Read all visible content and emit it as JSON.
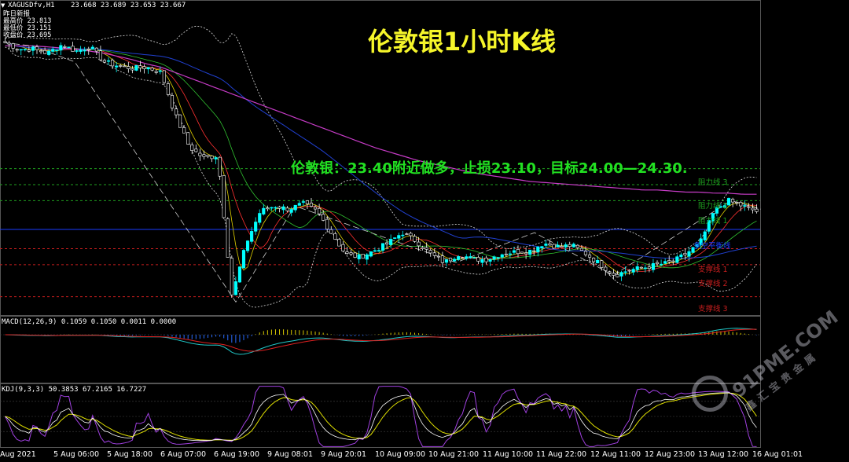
{
  "header": {
    "symbol": "XAGUSDfv,H1",
    "ohlc": "23.668 23.689 23.653 23.667",
    "prev_label": "昨日新报",
    "prev_high": "最高价 23.813",
    "prev_low": "最低价 23.151",
    "prev_close": "收盘价 23.695"
  },
  "title": "伦敦银1小时K线",
  "advice": "伦敦银：23.40附近做多，止损23.10，目标24.00—24.30.",
  "levels": {
    "resistance_3": "阻力线 3",
    "resistance_2": "阻力线 2",
    "resistance_1": "阻力线 1",
    "pivot": "多空平衡线",
    "support_1": "支撑线 1",
    "support_2": "支撑线 2",
    "support_3": "支撑线 3"
  },
  "macd_label": "MACD(12,26,9) 0.1059 0.1050 0.0011 0.0000",
  "kdj_label": "KDJ(9,3,3) 50.3853 67.2165 16.7227",
  "watermark": {
    "text1": "91PME.COM",
    "text2": "鑫汇宝贵金属"
  },
  "colors": {
    "background": "#000000",
    "bull": "#00ffff",
    "bear": "#ffffff",
    "resistance": "#1fa01f",
    "support": "#c81e1e",
    "pivot": "#1a3cff",
    "ma_long": "#c83cc8",
    "title": "#f5f52a",
    "advice": "#22e022"
  },
  "chart_data": {
    "type": "line",
    "symbol": "XAGUSDfv",
    "timeframe": "H1",
    "x_ticks": [
      "Aug 2021",
      "5 Aug 06:00",
      "5 Aug 18:00",
      "6 Aug 07:00",
      "6 Aug 19:00",
      "9 Aug 08:01",
      "9 Aug 20:01",
      "10 Aug 09:00",
      "10 Aug 21:00",
      "11 Aug 10:00",
      "11 Aug 22:00",
      "12 Aug 11:00",
      "12 Aug 23:00",
      "13 Aug 12:00",
      "16 Aug 01:01"
    ],
    "price_path": [
      25.48,
      25.42,
      25.42,
      25.38,
      25.46,
      25.4,
      25.44,
      25.3,
      25.26,
      25.24,
      25.25,
      25.2,
      24.8,
      24.5,
      24.4,
      24.42,
      23.1,
      23.6,
      23.9,
      23.95,
      23.92,
      23.97,
      23.9,
      23.7,
      23.5,
      23.47,
      23.53,
      23.6,
      23.7,
      23.62,
      23.5,
      23.42,
      23.5,
      23.45,
      23.45,
      23.5,
      23.52,
      23.53,
      23.6,
      23.57,
      23.58,
      23.5,
      23.4,
      23.3,
      23.35,
      23.37,
      23.4,
      23.42,
      23.5,
      23.6,
      23.9,
      24.0,
      23.95,
      23.9
    ],
    "ma_long_path": [
      25.45,
      25.45,
      25.45,
      25.44,
      25.43,
      25.42,
      25.4,
      25.38,
      25.35,
      25.32,
      25.28,
      25.25,
      25.2,
      25.15,
      25.1,
      25.05,
      25.0,
      24.95,
      24.9,
      24.85,
      24.8,
      24.75,
      24.7,
      24.65,
      24.6,
      24.55,
      24.5,
      24.46,
      24.42,
      24.38,
      24.35,
      24.32,
      24.29,
      24.26,
      24.24,
      24.22,
      24.2,
      24.18,
      24.17,
      24.16,
      24.15,
      24.14,
      24.13,
      24.12,
      24.11,
      24.1,
      24.1,
      24.09,
      24.08,
      24.08,
      24.07,
      24.07,
      24.06,
      24.06
    ],
    "levels": [
      {
        "name": "阻力线 3",
        "value": 24.3
      },
      {
        "name": "阻力线 2",
        "value": 24.15
      },
      {
        "name": "阻力线 1",
        "value": 24.0
      },
      {
        "name": "多空平衡线",
        "value": 23.73
      },
      {
        "name": "支撑线 1",
        "value": 23.55
      },
      {
        "name": "支撑线 2",
        "value": 23.4
      },
      {
        "name": "支撑线 3",
        "value": 23.1
      }
    ],
    "ylim": [
      22.95,
      25.85
    ],
    "macd": {
      "params": "12,26,9",
      "values": [
        0.1059,
        0.105,
        0.0011,
        0.0
      ]
    },
    "kdj": {
      "params": "9,3,3",
      "values": [
        50.3853,
        67.2165,
        16.7227
      ]
    },
    "grid": false
  }
}
